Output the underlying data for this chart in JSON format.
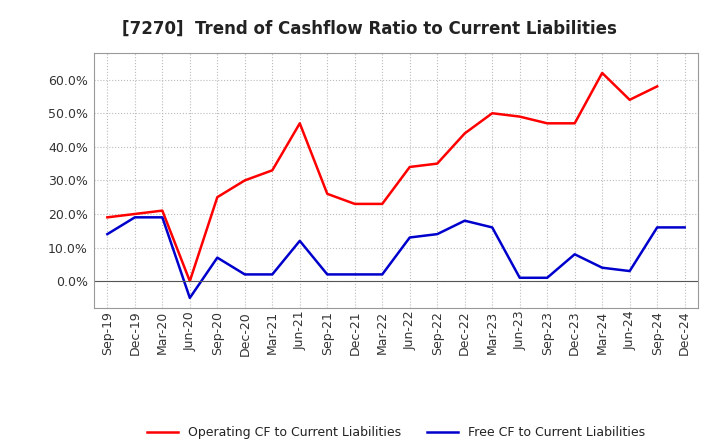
{
  "title": "[7270]  Trend of Cashflow Ratio to Current Liabilities",
  "x_labels": [
    "Sep-19",
    "Dec-19",
    "Mar-20",
    "Jun-20",
    "Sep-20",
    "Dec-20",
    "Mar-21",
    "Jun-21",
    "Sep-21",
    "Dec-21",
    "Mar-22",
    "Jun-22",
    "Sep-22",
    "Dec-22",
    "Mar-23",
    "Jun-23",
    "Sep-23",
    "Dec-23",
    "Mar-24",
    "Jun-24",
    "Sep-24",
    "Dec-24"
  ],
  "operating_cf": [
    0.19,
    0.2,
    0.21,
    0.0,
    0.25,
    0.3,
    0.33,
    0.47,
    0.26,
    0.23,
    0.23,
    0.34,
    0.35,
    0.44,
    0.5,
    0.49,
    0.47,
    0.47,
    0.62,
    0.54,
    0.58,
    null
  ],
  "free_cf": [
    0.14,
    0.19,
    0.19,
    -0.05,
    0.07,
    0.02,
    0.02,
    0.12,
    0.02,
    0.02,
    0.02,
    0.13,
    0.14,
    0.18,
    0.16,
    0.01,
    0.01,
    0.08,
    0.04,
    0.03,
    0.16,
    0.16
  ],
  "operating_color": "#FF0000",
  "free_color": "#0000CC",
  "background_color": "#FFFFFF",
  "plot_bg_color": "#FFFFFF",
  "grid_color": "#BBBBBB",
  "ylim": [
    -0.08,
    0.68
  ],
  "yticks": [
    0.0,
    0.1,
    0.2,
    0.3,
    0.4,
    0.5,
    0.6
  ],
  "legend_labels": [
    "Operating CF to Current Liabilities",
    "Free CF to Current Liabilities"
  ],
  "title_fontsize": 12,
  "tick_fontsize": 9,
  "legend_fontsize": 9
}
